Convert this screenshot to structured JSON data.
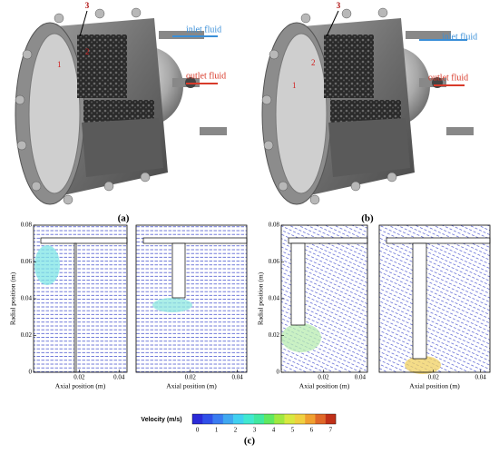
{
  "figure": {
    "panels": [
      {
        "label": "(a)",
        "inlet": "inlet fluid",
        "outlet": "outlet fluid",
        "markers": [
          "1",
          "2",
          "3"
        ]
      },
      {
        "label": "(b)",
        "inlet": "inlet fluid",
        "outlet": "outlet fluid",
        "markers": [
          "1",
          "2",
          "3"
        ]
      }
    ],
    "plots": {
      "label": "(c)",
      "y_axis_label": "Radial position (m)",
      "x_axis_label": "Axial position (m)",
      "yticks": [
        0.08,
        0.06,
        0.04,
        0.02,
        0
      ],
      "xticks": [
        0.02,
        0.04
      ],
      "colorbar": {
        "label": "Velocity (m/s)",
        "ticks": [
          0,
          1,
          2,
          3,
          4,
          5,
          6,
          7
        ]
      }
    }
  }
}
